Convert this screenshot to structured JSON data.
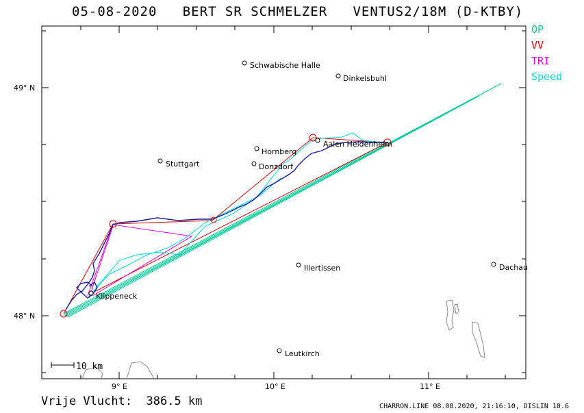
{
  "header": {
    "title": "05-08-2020   BERT SR SCHMELZER   VENTUS2/18M (D-KTBY)"
  },
  "legend": [
    {
      "label": "OP",
      "color": "#00cc88"
    },
    {
      "label": "VV",
      "color": "#dd0000"
    },
    {
      "label": "TRI",
      "color": "#dd00dd"
    },
    {
      "label": "Speed",
      "color": "#00dddd"
    }
  ],
  "map": {
    "lat_labels": [
      "49° N",
      "48° N"
    ],
    "lon_labels": [
      "9° E",
      "10° E",
      "11° E"
    ],
    "scale_label": "10 km",
    "cities": [
      {
        "name": "Schwabische Halle"
      },
      {
        "name": "Dinkelsbuhl"
      },
      {
        "name": "Hornberg"
      },
      {
        "name": "Stuttgart"
      },
      {
        "name": "Donzdorf"
      },
      {
        "name": "Aalen Heidenheim"
      },
      {
        "name": "Illertissen"
      },
      {
        "name": "Dachau"
      },
      {
        "name": "Klippeneck"
      },
      {
        "name": "Leutkirch"
      }
    ]
  },
  "footer": {
    "distance": "Vrije Vlucht:  386.5 km",
    "credit": "CHARRON.LINE 08.08.2020, 21:16:10, DISLIN 10.6"
  }
}
